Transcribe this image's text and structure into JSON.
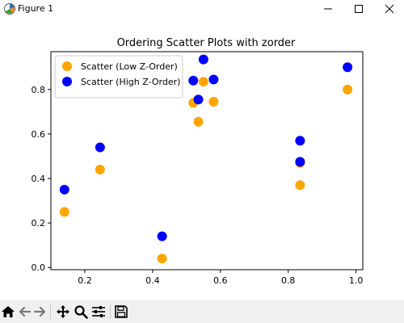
{
  "window": {
    "title": "Figure 1",
    "icons": {
      "app": "matplotlib-icon",
      "minimize": "minimize-icon",
      "maximize": "maximize-icon",
      "close": "close-icon"
    }
  },
  "toolbar": {
    "buttons": [
      {
        "name": "home",
        "icon": "home-icon"
      },
      {
        "name": "back",
        "icon": "back-arrow-icon"
      },
      {
        "name": "forward",
        "icon": "forward-arrow-icon"
      },
      {
        "name": "pan",
        "icon": "pan-move-icon"
      },
      {
        "name": "zoom",
        "icon": "zoom-magnifier-icon"
      },
      {
        "name": "configure-subplots",
        "icon": "sliders-icon"
      },
      {
        "name": "save",
        "icon": "save-floppy-icon"
      }
    ]
  },
  "chart_data": {
    "type": "scatter",
    "title": "Ordering Scatter Plots with zorder",
    "xlabel": "",
    "ylabel": "",
    "xlim": [
      0.1,
      1.02
    ],
    "ylim": [
      -0.01,
      0.97
    ],
    "xticks": [
      0.2,
      0.4,
      0.6,
      0.8,
      1.0
    ],
    "xtick_labels": [
      "0.2",
      "0.4",
      "0.6",
      "0.8",
      "1.0"
    ],
    "yticks": [
      0.0,
      0.2,
      0.4,
      0.6,
      0.8
    ],
    "ytick_labels": [
      "0.0",
      "0.2",
      "0.4",
      "0.6",
      "0.8"
    ],
    "grid": false,
    "legend_position": "upper-left",
    "series": [
      {
        "name": "Scatter (Low Z-Order)",
        "color": "#ffa500",
        "x": [
          0.14,
          0.245,
          0.428,
          0.52,
          0.535,
          0.55,
          0.58,
          0.835,
          0.835,
          0.975
        ],
        "y": [
          0.25,
          0.44,
          0.04,
          0.74,
          0.655,
          0.835,
          0.745,
          0.47,
          0.37,
          0.8
        ]
      },
      {
        "name": "Scatter (High Z-Order)",
        "color": "#0000ff",
        "x": [
          0.14,
          0.245,
          0.428,
          0.52,
          0.535,
          0.55,
          0.58,
          0.835,
          0.835,
          0.975
        ],
        "y": [
          0.35,
          0.54,
          0.14,
          0.84,
          0.755,
          0.935,
          0.845,
          0.57,
          0.475,
          0.9
        ]
      }
    ]
  }
}
